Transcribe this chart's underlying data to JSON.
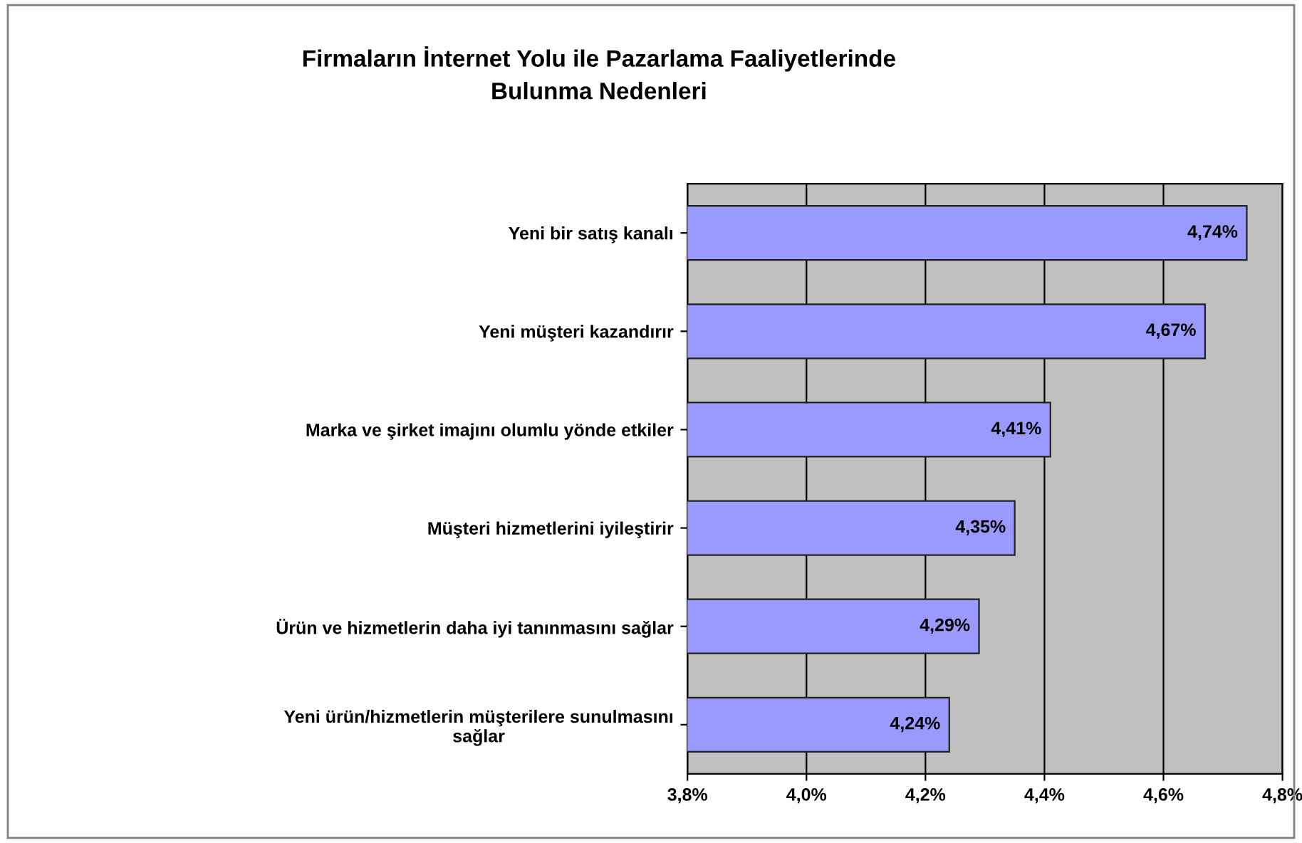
{
  "chart_data": {
    "type": "bar",
    "orientation": "horizontal",
    "title": "Firmaların İnternet Yolu ile Pazarlama Faaliyetlerinde\nBulunma Nedenleri",
    "categories": [
      "Yeni bir satış kanalı",
      "Yeni müşteri kazandırır",
      "Marka ve şirket imajını olumlu yönde etkiler",
      "Müşteri hizmetlerini iyileştirir",
      "Ürün ve hizmetlerin daha iyi tanınmasını sağlar",
      "Yeni ürün/hizmetlerin müşterilere sunulmasını\nsağlar"
    ],
    "values": [
      4.74,
      4.67,
      4.41,
      4.35,
      4.29,
      4.24
    ],
    "value_labels": [
      "4,74%",
      "4,67%",
      "4,41%",
      "4,35%",
      "4,29%",
      "4,24%"
    ],
    "color": "#9999ff",
    "xlim": [
      3.8,
      4.8
    ],
    "xticks": [
      {
        "value": 3.8,
        "label": "3,8%"
      },
      {
        "value": 4.0,
        "label": "4,0%"
      },
      {
        "value": 4.2,
        "label": "4,2%"
      },
      {
        "value": 4.4,
        "label": "4,4%"
      },
      {
        "value": 4.6,
        "label": "4,6%"
      },
      {
        "value": 4.8,
        "label": "4,8%"
      }
    ],
    "grid": "x",
    "legend": false
  }
}
